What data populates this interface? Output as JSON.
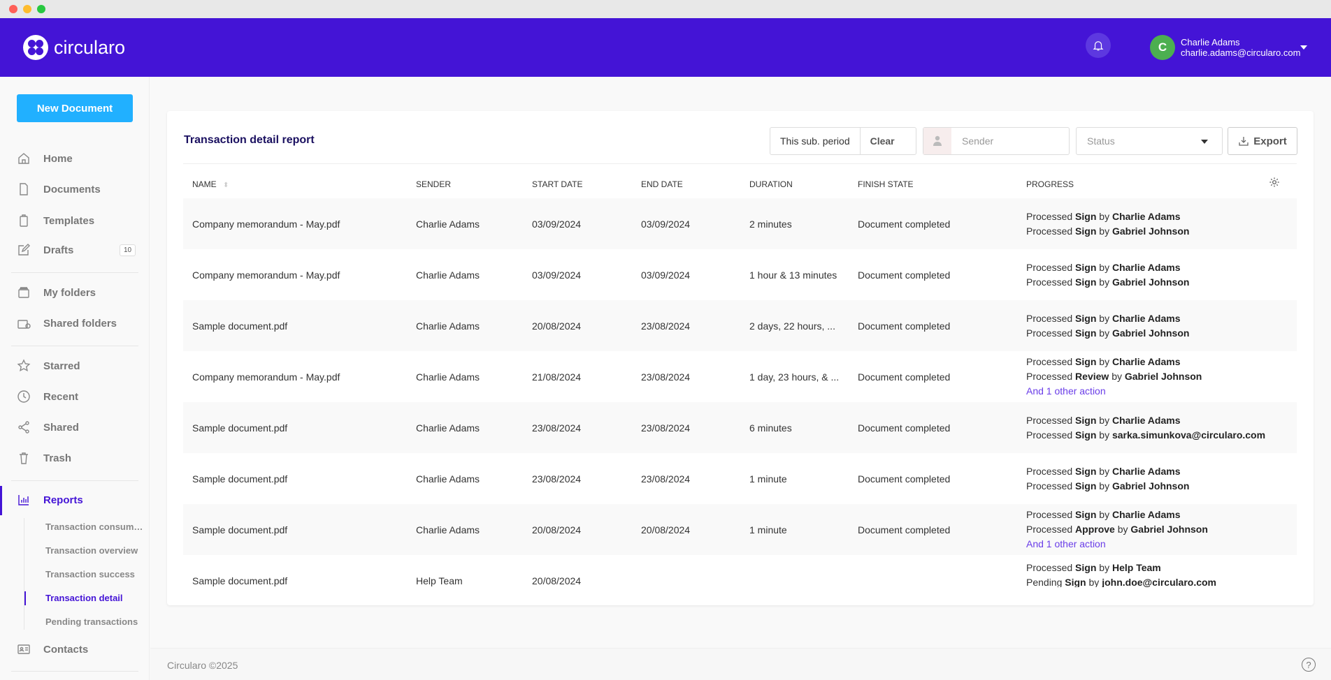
{
  "app": {
    "brand": "circularo",
    "accent": "#4414d6"
  },
  "header": {
    "user_name": "Charlie Adams",
    "user_email": "charlie.adams@circularo.com",
    "avatar_initial": "C"
  },
  "sidebar": {
    "new_document": "New Document",
    "items": [
      {
        "label": "Home",
        "icon": "home-icon"
      },
      {
        "label": "Documents",
        "icon": "document-icon"
      },
      {
        "label": "Templates",
        "icon": "template-icon"
      },
      {
        "label": "Drafts",
        "icon": "edit-icon",
        "badge": "10"
      },
      {
        "label": "My folders",
        "icon": "folder-icon"
      },
      {
        "label": "Shared folders",
        "icon": "shared-folder-icon"
      },
      {
        "label": "Starred",
        "icon": "star-icon"
      },
      {
        "label": "Recent",
        "icon": "clock-icon"
      },
      {
        "label": "Shared",
        "icon": "share-icon"
      },
      {
        "label": "Trash",
        "icon": "trash-icon"
      },
      {
        "label": "Reports",
        "icon": "chart-icon",
        "active": true
      },
      {
        "label": "Contacts",
        "icon": "contact-card-icon"
      }
    ],
    "reports_sub": [
      "Transaction consumpt...",
      "Transaction overview",
      "Transaction success",
      "Transaction detail",
      "Pending transactions"
    ]
  },
  "report": {
    "title": "Transaction detail report",
    "period": "This sub. period",
    "clear": "Clear",
    "sender_placeholder": "Sender",
    "status_placeholder": "Status",
    "export": "Export",
    "columns": [
      "NAME",
      "SENDER",
      "START DATE",
      "END DATE",
      "DURATION",
      "FINISH STATE",
      "PROGRESS"
    ],
    "rows": [
      {
        "name": "Company memorandum - May.pdf",
        "sender": "Charlie Adams",
        "start": "03/09/2024",
        "end": "03/09/2024",
        "duration": "2 minutes",
        "state": "Document completed",
        "progress": [
          [
            "Processed",
            "Sign",
            "Charlie Adams"
          ],
          [
            "Processed",
            "Sign",
            "Gabriel Johnson"
          ]
        ],
        "more": ""
      },
      {
        "name": "Company memorandum - May.pdf",
        "sender": "Charlie Adams",
        "start": "03/09/2024",
        "end": "03/09/2024",
        "duration": "1 hour & 13 minutes",
        "state": "Document completed",
        "progress": [
          [
            "Processed",
            "Sign",
            "Charlie Adams"
          ],
          [
            "Processed",
            "Sign",
            "Gabriel Johnson"
          ]
        ],
        "more": ""
      },
      {
        "name": "Sample document.pdf",
        "sender": "Charlie Adams",
        "start": "20/08/2024",
        "end": "23/08/2024",
        "duration": "2 days, 22 hours, ...",
        "state": "Document completed",
        "progress": [
          [
            "Processed",
            "Sign",
            "Charlie Adams"
          ],
          [
            "Processed",
            "Sign",
            "Gabriel Johnson"
          ]
        ],
        "more": ""
      },
      {
        "name": "Company memorandum - May.pdf",
        "sender": "Charlie Adams",
        "start": "21/08/2024",
        "end": "23/08/2024",
        "duration": "1 day, 23 hours, & ...",
        "state": "Document completed",
        "progress": [
          [
            "Processed",
            "Sign",
            "Charlie Adams"
          ],
          [
            "Processed",
            "Review",
            "Gabriel Johnson"
          ]
        ],
        "more": "And 1 other action"
      },
      {
        "name": "Sample document.pdf",
        "sender": "Charlie Adams",
        "start": "23/08/2024",
        "end": "23/08/2024",
        "duration": "6 minutes",
        "state": "Document completed",
        "progress": [
          [
            "Processed",
            "Sign",
            "Charlie Adams"
          ],
          [
            "Processed",
            "Sign",
            "sarka.simunkova@circularo.com"
          ]
        ],
        "more": ""
      },
      {
        "name": "Sample document.pdf",
        "sender": "Charlie Adams",
        "start": "23/08/2024",
        "end": "23/08/2024",
        "duration": "1 minute",
        "state": "Document completed",
        "progress": [
          [
            "Processed",
            "Sign",
            "Charlie Adams"
          ],
          [
            "Processed",
            "Sign",
            "Gabriel Johnson"
          ]
        ],
        "more": ""
      },
      {
        "name": "Sample document.pdf",
        "sender": "Charlie Adams",
        "start": "20/08/2024",
        "end": "20/08/2024",
        "duration": "1 minute",
        "state": "Document completed",
        "progress": [
          [
            "Processed",
            "Sign",
            "Charlie Adams"
          ],
          [
            "Processed",
            "Approve",
            "Gabriel Johnson"
          ]
        ],
        "more": "And 1 other action"
      },
      {
        "name": "Sample document.pdf",
        "sender": "Help Team",
        "start": "20/08/2024",
        "end": "",
        "duration": "",
        "state": "",
        "progress": [
          [
            "Processed",
            "Sign",
            "Help Team"
          ],
          [
            "Pending",
            "Sign",
            "john.doe@circularo.com"
          ]
        ],
        "more": ""
      }
    ],
    "by": "by"
  },
  "footer": {
    "copyright": "Circularo ©2025",
    "help": "?"
  }
}
